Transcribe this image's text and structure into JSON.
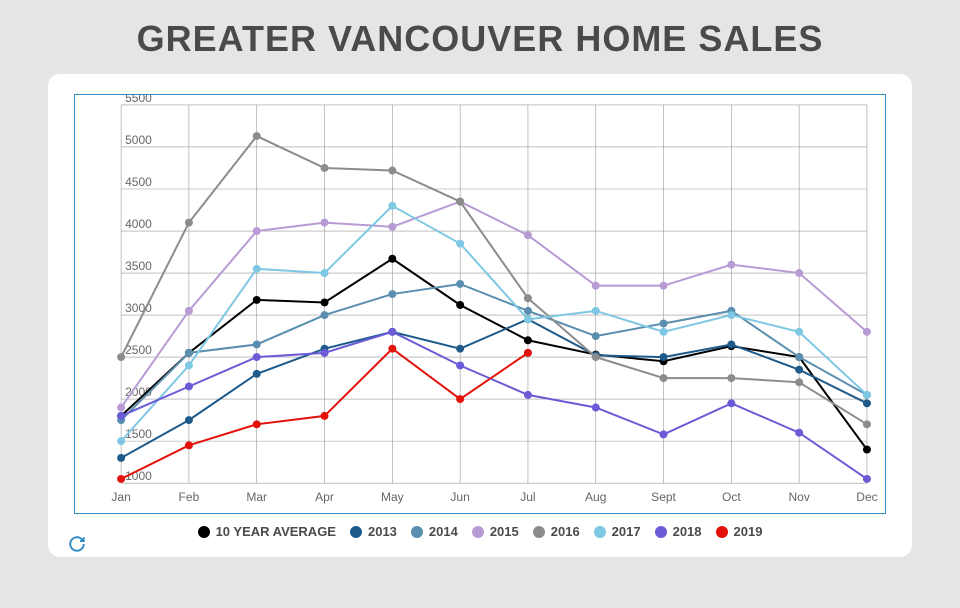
{
  "title": "GREATER VANCOUVER HOME SALES",
  "chart": {
    "type": "line",
    "background_color": "#ffffff",
    "frame_border_color": "#2e8bc0",
    "grid_color": "#9a9a9a",
    "axis_font_color": "#666666",
    "axis_fontsize": 12,
    "title_fontsize": 36,
    "title_color": "#4a4a4a",
    "marker_radius": 4,
    "line_width": 2,
    "categories": [
      "Jan",
      "Feb",
      "Mar",
      "Apr",
      "May",
      "Jun",
      "Jul",
      "Aug",
      "Sept",
      "Oct",
      "Nov",
      "Dec"
    ],
    "ylim": [
      1000,
      5500
    ],
    "ytick_step": 500,
    "yticks": [
      1000,
      1500,
      2000,
      2500,
      3000,
      3500,
      4000,
      4500,
      5000,
      5500
    ],
    "series": [
      {
        "name": "10 YEAR AVERAGE",
        "color": "#000000",
        "values": [
          1800,
          2550,
          3180,
          3150,
          3670,
          3120,
          2700,
          2530,
          2450,
          2630,
          2500,
          1400
        ]
      },
      {
        "name": "2013",
        "color": "#1e5a8a",
        "values": [
          1300,
          1750,
          2300,
          2600,
          2800,
          2600,
          2950,
          2520,
          2500,
          2650,
          2350,
          1950
        ]
      },
      {
        "name": "2014",
        "color": "#5b8fb0",
        "values": [
          1750,
          2550,
          2650,
          3000,
          3250,
          3370,
          3050,
          2750,
          2900,
          3050,
          2500,
          2050
        ]
      },
      {
        "name": "2015",
        "color": "#b89bd4",
        "values": [
          1900,
          3050,
          4000,
          4100,
          4050,
          4350,
          3950,
          3350,
          3350,
          3600,
          3500,
          2800
        ]
      },
      {
        "name": "2016",
        "color": "#8c8c8c",
        "values": [
          2500,
          4100,
          5130,
          4750,
          4720,
          4350,
          3200,
          2500,
          2250,
          2250,
          2200,
          1700
        ]
      },
      {
        "name": "2017",
        "color": "#7ec8e3",
        "values": [
          1500,
          2400,
          3550,
          3500,
          4300,
          3850,
          2950,
          3050,
          2800,
          3000,
          2800,
          2050
        ]
      },
      {
        "name": "2018",
        "color": "#6b5bd6",
        "values": [
          1800,
          2150,
          2500,
          2550,
          2800,
          2400,
          2050,
          1900,
          1580,
          1950,
          1600,
          1050
        ]
      },
      {
        "name": "2019",
        "color": "#e3120b",
        "values": [
          1050,
          1450,
          1700,
          1800,
          2600,
          2000,
          2550,
          null,
          null,
          null,
          null,
          null
        ]
      }
    ]
  },
  "legend_fontsize": 13,
  "legend_color": "#4a4a4a",
  "refresh_icon_color": "#2e8bc0"
}
